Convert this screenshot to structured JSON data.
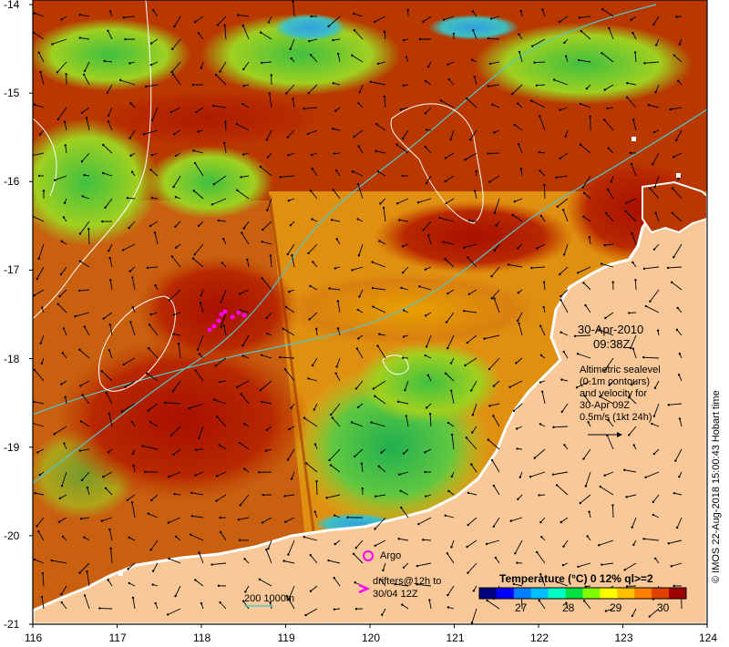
{
  "map": {
    "lon_ticks": [
      "116",
      "117",
      "118",
      "119",
      "120",
      "121",
      "122",
      "123",
      "124"
    ],
    "lat_ticks": [
      "-14",
      "-15",
      "-16",
      "-17",
      "-18",
      "-19",
      "-20",
      "-21"
    ],
    "lon_range": [
      116,
      124
    ],
    "lat_range": [
      -21,
      -14
    ],
    "date_label": "30-Apr-2010",
    "time_label": "09:38Z",
    "altimetry_text": [
      "Altimetric sealevel",
      "(0.1m contours)",
      "and velocity for",
      "30-Apr 09Z",
      "0.5m/s (1kt 24h)"
    ],
    "legend": {
      "argo_label": "Argo",
      "drifters_label_1": "drifters@12h to",
      "drifters_label_2": "30/04 12Z",
      "depth_label": "200  1000m"
    },
    "colorbar": {
      "title": "Temperature (°C) 0 12% ql>=2",
      "ticks": [
        "27",
        "28",
        "29",
        "30"
      ],
      "colors": [
        "#000080",
        "#0000ff",
        "#0080ff",
        "#00c0ff",
        "#00ffc0",
        "#00e040",
        "#80ff00",
        "#ffff00",
        "#ffc000",
        "#ff8000",
        "#e04000",
        "#a00000"
      ]
    },
    "credit": "© IMOS 22-Aug-2018 15:00:43 Hobart time",
    "colors": {
      "land": "#f8c898",
      "coastline": "#ffffff",
      "contour_200m": "#50c8c8",
      "sea_level_contour": "#ffffff",
      "drifter": "#ff00ff"
    }
  }
}
